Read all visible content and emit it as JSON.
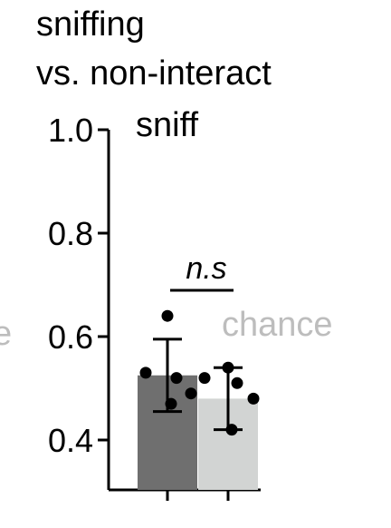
{
  "chart_data": {
    "type": "bar",
    "title_lines": [
      "sniffing",
      "vs. non-interact"
    ],
    "series_label": "sniff",
    "ylabel_fragment": "e",
    "ylim": [
      0.35,
      1.0
    ],
    "yticks": [
      1.0,
      0.8,
      0.6,
      0.4
    ],
    "ytick_labels": [
      "1.0",
      "0.8",
      "0.6",
      "0.4"
    ],
    "bars": [
      {
        "value": 0.525,
        "sem": 0.07,
        "color": "#6f6f6f",
        "points": [
          0.64,
          0.53,
          0.52,
          0.49,
          0.47
        ]
      },
      {
        "value": 0.48,
        "sem": 0.06,
        "color": "#d2d4d3",
        "points": [
          0.54,
          0.52,
          0.51,
          0.48,
          0.42
        ]
      }
    ],
    "annotations": {
      "significance": "n.s",
      "chance_label": "chance"
    },
    "colors": {
      "axis": "#000000",
      "points": "#000000",
      "chance_text": "#bdbdbd"
    }
  }
}
